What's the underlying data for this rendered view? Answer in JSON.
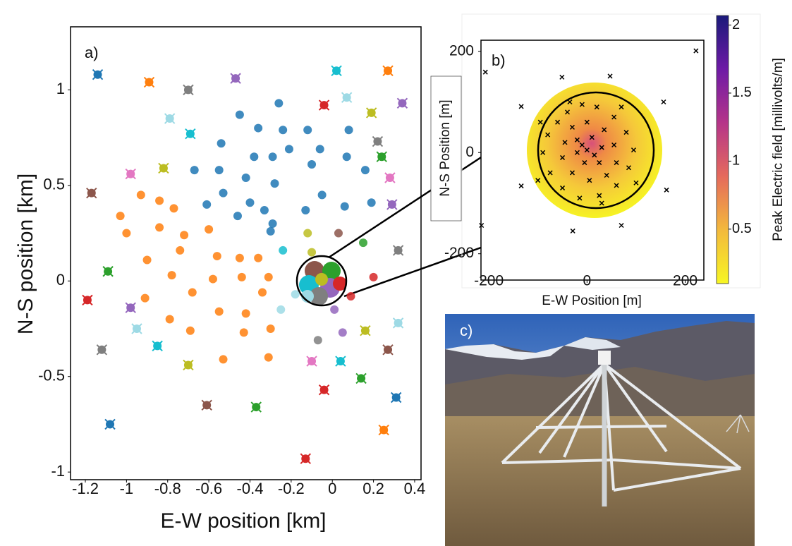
{
  "chart_data": [
    {
      "type": "scatter",
      "panel_label": "a)",
      "xlabel": "E-W position [km]",
      "ylabel": "N-S position [km]",
      "xlim": [
        -1.272,
        0.431
      ],
      "ylim": [
        -1.04,
        1.33
      ],
      "xticks": [
        -1.2,
        -1,
        -0.8,
        -0.6,
        -0.4,
        -0.2,
        0,
        0.2,
        0.4
      ],
      "yticks": [
        -1,
        -0.5,
        0,
        0.5,
        1
      ],
      "series": [
        {
          "color": "#1f77b4",
          "marker": "circle",
          "x": [
            -0.26,
            -0.45,
            -0.36,
            -0.24,
            -0.12,
            0.08,
            -0.54,
            -0.21,
            -0.06,
            -0.38,
            -0.29,
            -0.1,
            0.07,
            -0.67,
            -0.55,
            -0.42,
            0.16,
            -0.28,
            -0.53,
            -0.05,
            -0.61,
            -0.4,
            0.19,
            0.06,
            -0.13,
            -0.33,
            -0.46,
            -0.29,
            -0.3
          ],
          "y": [
            0.93,
            0.87,
            0.8,
            0.79,
            0.79,
            0.79,
            0.72,
            0.69,
            0.69,
            0.65,
            0.65,
            0.61,
            0.65,
            0.58,
            0.58,
            0.54,
            0.58,
            0.51,
            0.46,
            0.45,
            0.4,
            0.41,
            0.41,
            0.39,
            0.37,
            0.37,
            0.34,
            0.3,
            0.26
          ]
        },
        {
          "color": "#ff7f0e",
          "marker": "circle",
          "x": [
            -0.93,
            -1.03,
            -0.84,
            -0.77,
            -1.0,
            -0.84,
            -0.72,
            -0.6,
            -0.74,
            -0.9,
            -0.56,
            -0.45,
            -0.36,
            -0.78,
            -0.58,
            -0.44,
            -0.31,
            -0.68,
            -0.91,
            -0.34,
            -0.55,
            -0.42,
            -0.79,
            -0.69,
            -0.3,
            -0.43,
            -0.53,
            -0.31
          ],
          "y": [
            0.45,
            0.34,
            0.42,
            0.38,
            0.25,
            0.28,
            0.24,
            0.27,
            0.16,
            0.11,
            0.13,
            0.12,
            0.12,
            0.03,
            0.01,
            0.02,
            0.02,
            -0.06,
            -0.09,
            -0.06,
            -0.16,
            -0.17,
            -0.2,
            -0.26,
            -0.25,
            -0.27,
            -0.41,
            -0.4
          ]
        },
        {
          "marker": "x-circle",
          "colors": [
            "#1f77b4",
            "#ff7f0e",
            "#7f7f7f",
            "#9467bd",
            "#17becf",
            "#ff7f0e",
            "#d62728",
            "#9edae5",
            "#9467bd",
            "#bcbd22",
            "#9edae5",
            "#17becf",
            "#7f7f7f",
            "#2ca02c",
            "#bcbd22",
            "#e377c2",
            "#e377c2",
            "#8c564b",
            "#9467bd",
            "#7f7f7f",
            "#2ca02c",
            "#d62728",
            "#9467bd",
            "#9edae5",
            "#bcbd22",
            "#9edae5",
            "#7f7f7f",
            "#17becf",
            "#8c564b",
            "#bcbd22",
            "#e377c2",
            "#17becf",
            "#2ca02c",
            "#d62728",
            "#1f77b4",
            "#8c564b",
            "#2ca02c",
            "#1f77b4",
            "#ff7f0e",
            "#d62728"
          ],
          "x": [
            -1.14,
            -0.89,
            -0.7,
            -0.47,
            0.02,
            0.27,
            -0.04,
            0.07,
            0.34,
            0.19,
            -0.79,
            -0.69,
            0.22,
            0.24,
            -0.82,
            -0.98,
            0.28,
            -1.17,
            0.29,
            0.32,
            -1.09,
            -1.19,
            -0.98,
            0.32,
            0.16,
            -0.95,
            -1.12,
            -0.85,
            0.27,
            -0.7,
            -0.1,
            0.04,
            0.14,
            -0.04,
            0.31,
            -0.61,
            -0.37,
            -1.08,
            0.25,
            -0.13
          ],
          "y": [
            1.08,
            1.04,
            1.0,
            1.06,
            1.1,
            1.1,
            0.92,
            0.96,
            0.93,
            0.88,
            0.85,
            0.77,
            0.73,
            0.65,
            0.59,
            0.56,
            0.54,
            0.46,
            0.4,
            0.16,
            0.05,
            -0.1,
            -0.14,
            -0.22,
            -0.26,
            -0.25,
            -0.36,
            -0.34,
            -0.36,
            -0.44,
            -0.42,
            -0.42,
            -0.51,
            -0.57,
            -0.61,
            -0.65,
            -0.66,
            -0.75,
            -0.78,
            -0.93
          ]
        },
        {
          "marker": "circle",
          "colors": [
            "#bcbd22",
            "#8c564b",
            "#2ca02c",
            "#17becf",
            "#bcbd22",
            "#d62728",
            "#d62728",
            "#9edae5",
            "#9edae5",
            "#9467bd",
            "#9467bd",
            "#7f7f7f"
          ],
          "x": [
            -0.12,
            0.03,
            0.15,
            -0.24,
            -0.1,
            0.2,
            0.09,
            -0.18,
            -0.25,
            0.01,
            0.05,
            -0.07
          ],
          "y": [
            0.25,
            0.25,
            0.2,
            0.16,
            0.15,
            0.02,
            -0.08,
            -0.07,
            -0.15,
            -0.15,
            -0.27,
            -0.31
          ]
        }
      ]
    },
    {
      "type": "scatter",
      "panel_label": "b)",
      "xlabel": "E-W Position [m]",
      "ylabel": "N-S Position [m]",
      "xlim": [
        -216,
        238
      ],
      "ylim": [
        -252,
        222
      ],
      "xticks": [
        -200,
        0,
        200
      ],
      "yticks": [
        -200,
        0,
        200
      ],
      "series": [
        {
          "color": "#000000",
          "marker": "x",
          "x": [
            222,
            -207,
            -51,
            47,
            -134,
            156,
            -134,
            162,
            -215,
            -29,
            70,
            -40,
            -10,
            20,
            55,
            80,
            95,
            85,
            60,
            25,
            -15,
            -50,
            -75,
            -90,
            -80,
            -60,
            -30,
            0,
            35,
            55,
            60,
            40,
            5,
            -30,
            -50,
            -45,
            -20,
            10,
            30,
            25,
            -5,
            -20,
            0,
            15,
            -10,
            70,
            -95,
            100,
            -100,
            30,
            -35
          ],
          "y": [
            201,
            159,
            149,
            151,
            91,
            100,
            -66,
            -74,
            -144,
            -155,
            -144,
            80,
            95,
            90,
            70,
            40,
            5,
            -30,
            -65,
            -85,
            -90,
            -70,
            -40,
            0,
            35,
            60,
            50,
            60,
            45,
            15,
            -20,
            -45,
            -55,
            -40,
            -10,
            20,
            25,
            30,
            10,
            -20,
            -20,
            0,
            5,
            -5,
            15,
            90,
            60,
            -60,
            -55,
            -100,
            100
          ]
        }
      ],
      "colorbar": {
        "label": "Peak Electric field [millivolts/m]",
        "lim": [
          0.1,
          2.07
        ],
        "ticks": [
          0.5,
          1,
          1.5,
          2
        ],
        "colors": [
          "#f7f623",
          "#f3b93c",
          "#e56a5c",
          "#b53589",
          "#6e1aa6",
          "#1a1a7a"
        ]
      }
    }
  ],
  "photo": {
    "panel_label": "c)"
  }
}
